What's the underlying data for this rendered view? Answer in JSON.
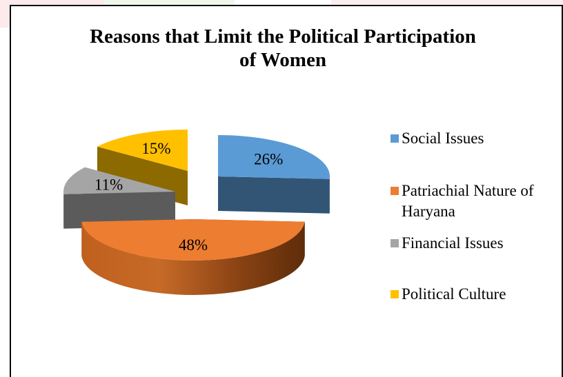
{
  "chart_data": {
    "type": "pie",
    "title": "Reasons that Limit the Political Participation of Women",
    "title_lines": [
      "Reasons that Limit the Political Participation",
      "of Women"
    ],
    "slices": [
      {
        "label": "Social Issues",
        "value": 26,
        "display": "26%",
        "color": "#5b9bd5"
      },
      {
        "label": "Patriachial Nature of Haryana",
        "value": 48,
        "display": "48%",
        "color": "#ed7d31"
      },
      {
        "label": "Financial Issues",
        "value": 11,
        "display": "11%",
        "color": "#a5a5a5"
      },
      {
        "label": "Political Culture",
        "value": 15,
        "display": "15%",
        "color": "#ffc000"
      }
    ],
    "style": "3d-exploded",
    "legend_position": "right"
  }
}
